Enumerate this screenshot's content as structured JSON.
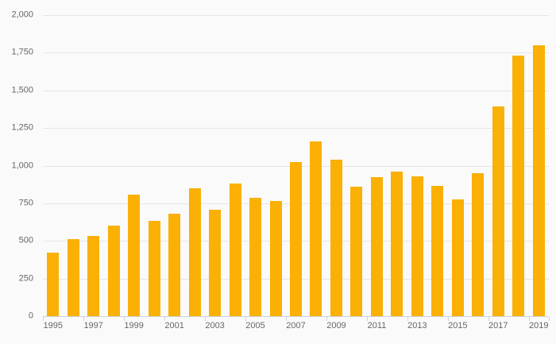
{
  "chart_data": {
    "type": "bar",
    "title": "",
    "xlabel": "",
    "ylabel": "",
    "categories": [
      "1995",
      "1996",
      "1997",
      "1998",
      "1999",
      "2000",
      "2001",
      "2002",
      "2003",
      "2004",
      "2005",
      "2006",
      "2007",
      "2008",
      "2009",
      "2010",
      "2011",
      "2012",
      "2013",
      "2014",
      "2015",
      "2016",
      "2017",
      "2018",
      "2019"
    ],
    "values": [
      420,
      510,
      533,
      601,
      806,
      633,
      679,
      849,
      706,
      880,
      786,
      765,
      1023,
      1160,
      1039,
      860,
      922,
      959,
      927,
      868,
      774,
      948,
      1392,
      1731,
      1798
    ],
    "ylim": [
      0,
      2000
    ],
    "ytick_step": 250,
    "ytick_labels": [
      "0",
      "250",
      "500",
      "750",
      "1,000",
      "1,250",
      "1,500",
      "1,750",
      "2,000"
    ],
    "xtick_labels": [
      "1995",
      "1997",
      "1999",
      "2001",
      "2003",
      "2005",
      "2007",
      "2009",
      "2011",
      "2013",
      "2015",
      "2017",
      "2019"
    ],
    "grid": true,
    "legend": "none"
  },
  "colors": {
    "background": "#fafafa",
    "bar": "#fab005",
    "gridline": "#e6e6e6",
    "axis": "#ccd3dc",
    "label_text": "#666666"
  }
}
